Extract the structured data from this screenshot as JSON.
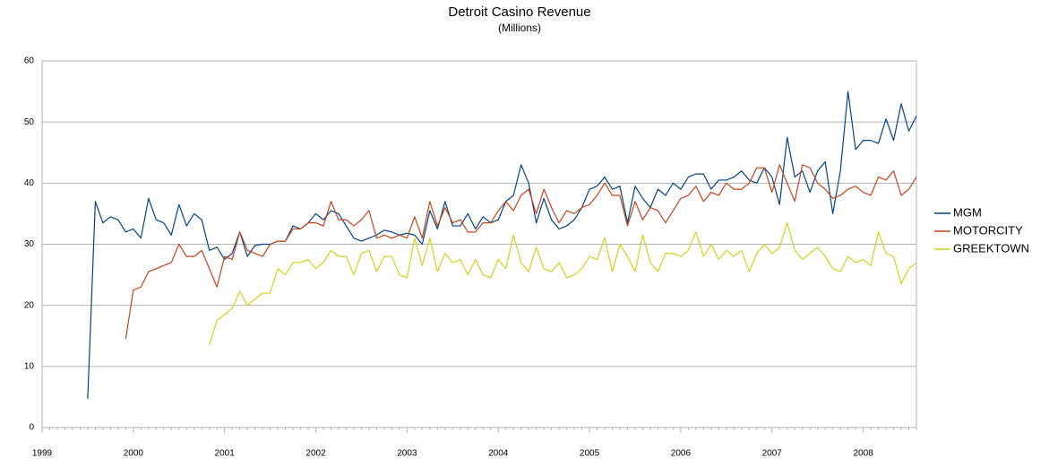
{
  "chart_data": {
    "type": "line",
    "title": "Detroit Casino Revenue",
    "subtitle": "(Millions)",
    "categories": [
      "1999",
      null,
      null,
      null,
      null,
      null,
      null,
      null,
      null,
      null,
      null,
      null,
      "2000",
      null,
      null,
      null,
      null,
      null,
      null,
      null,
      null,
      null,
      null,
      null,
      "2001",
      null,
      null,
      null,
      null,
      null,
      null,
      null,
      null,
      null,
      null,
      null,
      "2002",
      null,
      null,
      null,
      null,
      null,
      null,
      null,
      null,
      null,
      null,
      null,
      "2003",
      null,
      null,
      null,
      null,
      null,
      null,
      null,
      null,
      null,
      null,
      null,
      "2004",
      null,
      null,
      null,
      null,
      null,
      null,
      null,
      null,
      null,
      null,
      null,
      "2005",
      null,
      null,
      null,
      null,
      null,
      null,
      null,
      null,
      null,
      null,
      null,
      "2006",
      null,
      null,
      null,
      null,
      null,
      null,
      null,
      null,
      null,
      null,
      null,
      "2007",
      null,
      null,
      null,
      null,
      null,
      null,
      null,
      null,
      null,
      null,
      null,
      "2008",
      null,
      null,
      null,
      null,
      null,
      null,
      null
    ],
    "series": [
      {
        "name": "MGM",
        "color": "#004586",
        "values": [
          null,
          null,
          null,
          null,
          null,
          null,
          4.7,
          37,
          33.5,
          34.5,
          34,
          32,
          32.5,
          31,
          37.5,
          34,
          33.5,
          31.5,
          36.5,
          33,
          35,
          34,
          29,
          29.5,
          27.5,
          28.5,
          32,
          28,
          29.8,
          30,
          30,
          30.5,
          30.5,
          33,
          32.5,
          33.5,
          35,
          34,
          35.5,
          35,
          33,
          31,
          30.5,
          31,
          31.5,
          32.3,
          32,
          31.5,
          31.8,
          31.5,
          30,
          35.5,
          32.5,
          37,
          33,
          33,
          35,
          32.5,
          34.5,
          33.5,
          34,
          37,
          38,
          43,
          40,
          33.5,
          37.5,
          34,
          32.5,
          33,
          34,
          36,
          39,
          39.5,
          41,
          39,
          39.5,
          33.5,
          39.5,
          37.5,
          36,
          39,
          38,
          40,
          39,
          41,
          41.5,
          41.5,
          39,
          40.5,
          40.5,
          41,
          42,
          40.5,
          40,
          42.5,
          41,
          36.5,
          47.5,
          41,
          42,
          38.5,
          42,
          43.5,
          35,
          42,
          55,
          45.5,
          47,
          47,
          46.5,
          50.5,
          47,
          53,
          48.5,
          51
        ]
      },
      {
        "name": "MOTORCITY",
        "color": "#c5441c",
        "values": [
          null,
          null,
          null,
          null,
          null,
          null,
          null,
          null,
          null,
          null,
          null,
          14.5,
          22.5,
          23,
          25.5,
          26,
          26.5,
          27,
          30,
          28,
          28,
          29,
          26,
          23,
          28,
          27.5,
          32,
          29,
          28.5,
          28,
          30,
          30.5,
          30.5,
          32.5,
          32.5,
          33.5,
          33.5,
          33,
          37,
          34,
          34,
          33,
          34,
          35.5,
          31,
          31.5,
          31,
          31.5,
          31,
          34.5,
          31,
          37,
          33,
          36,
          33.5,
          34,
          32,
          32,
          33.5,
          33.5,
          35.5,
          37,
          35.5,
          38,
          39,
          35,
          39,
          36,
          33.5,
          35.5,
          35,
          36,
          36.5,
          38,
          40,
          38,
          38,
          33,
          37,
          34,
          36,
          35.5,
          33.5,
          35.5,
          37.5,
          38,
          39.5,
          37,
          38.5,
          38,
          40,
          39,
          39,
          40,
          42.5,
          42.5,
          38.5,
          43,
          40,
          37,
          43,
          42.5,
          40,
          39,
          37.5,
          38,
          39,
          39.5,
          38.5,
          38,
          41,
          40.5,
          42,
          38,
          39,
          41
        ]
      },
      {
        "name": "GREEKTOWN",
        "color": "#d2d21e",
        "values": [
          null,
          null,
          null,
          null,
          null,
          null,
          null,
          null,
          null,
          null,
          null,
          null,
          null,
          null,
          null,
          null,
          null,
          null,
          null,
          null,
          null,
          null,
          13.5,
          17.5,
          18.5,
          19.5,
          22.3,
          20,
          21,
          22,
          22,
          26,
          25,
          27,
          27,
          27.5,
          26,
          27,
          29,
          28,
          28,
          25,
          28.5,
          29,
          25.5,
          28,
          28,
          25,
          24.5,
          31,
          26.5,
          31,
          25.5,
          28.5,
          27,
          27.5,
          25,
          27.5,
          25,
          24.5,
          27.5,
          26,
          31.5,
          27,
          25.5,
          29.5,
          26,
          25.5,
          27,
          24.5,
          25,
          26,
          28,
          27.5,
          31,
          25.5,
          30,
          28,
          25.5,
          31.5,
          27,
          25.5,
          28.5,
          28.5,
          28,
          29,
          32,
          28,
          30,
          27.5,
          29,
          28,
          29,
          25.5,
          28.5,
          30,
          28.5,
          29.5,
          33.5,
          29,
          27.5,
          28.5,
          29.5,
          28,
          26,
          25.5,
          28,
          27,
          27.5,
          26.5,
          32,
          28.5,
          28,
          23.5,
          26,
          27
        ]
      }
    ],
    "ylim": [
      0,
      60
    ],
    "yticks": [
      0,
      10,
      20,
      30,
      40,
      50,
      60
    ],
    "grid": true,
    "legend": "right"
  }
}
